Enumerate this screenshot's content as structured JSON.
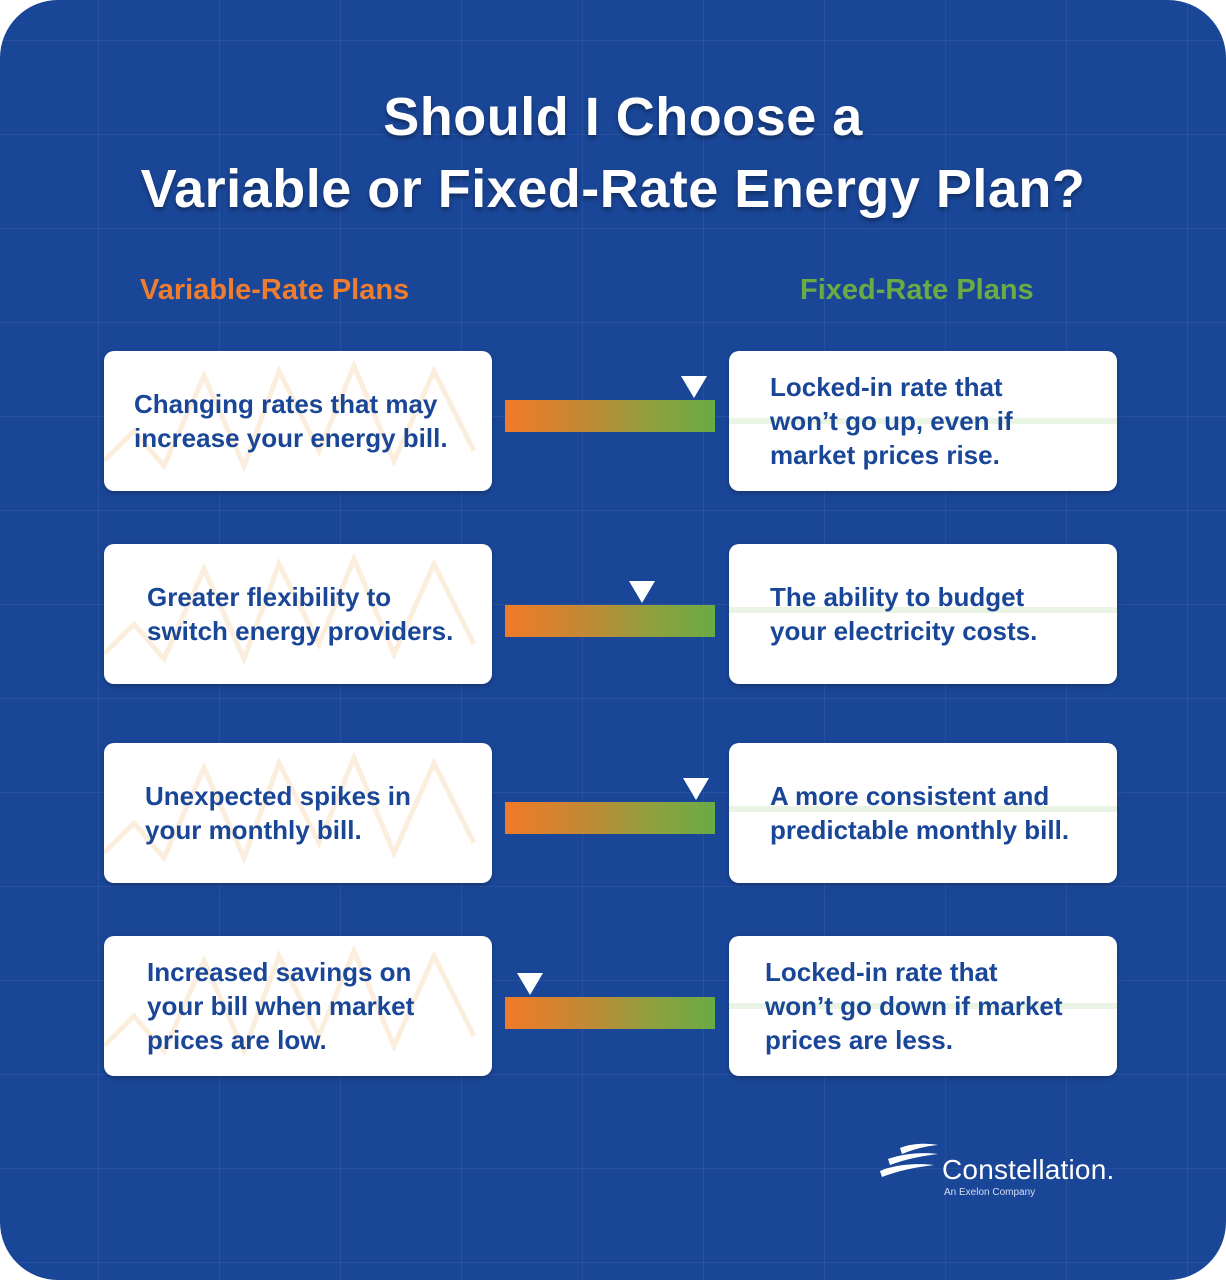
{
  "title": {
    "line1": "Should I Choose a",
    "line2": "Variable or Fixed-Rate Energy Plan?"
  },
  "columns": {
    "variable": "Variable-Rate Plans",
    "fixed": "Fixed-Rate Plans"
  },
  "rows": [
    {
      "variable": [
        "Changing rates that may",
        "increase your energy bill."
      ],
      "fixed": [
        "Locked-in rate that",
        "won’t go up, even if",
        "market prices rise."
      ],
      "indicator_position": 0.9
    },
    {
      "variable": [
        "Greater flexibility to",
        "switch energy providers."
      ],
      "fixed": [
        "The ability to budget",
        "your electricity costs."
      ],
      "indicator_position": 0.65
    },
    {
      "variable": [
        "Unexpected spikes in",
        "your monthly bill."
      ],
      "fixed": [
        "A more consistent and",
        "predictable monthly bill."
      ],
      "indicator_position": 0.91
    },
    {
      "variable": [
        "Increased savings on",
        "your bill when market",
        "prices are low."
      ],
      "fixed": [
        "Locked-in rate that",
        "won’t go down if market",
        "prices are less."
      ],
      "indicator_position": 0.12
    }
  ],
  "logo": {
    "brand": "Constellation.",
    "tagline": "An Exelon Company"
  },
  "colors": {
    "background": "#1a4697",
    "variable_accent": "#ef7d2f",
    "fixed_accent": "#6aab45",
    "card_text": "#1a4697"
  }
}
